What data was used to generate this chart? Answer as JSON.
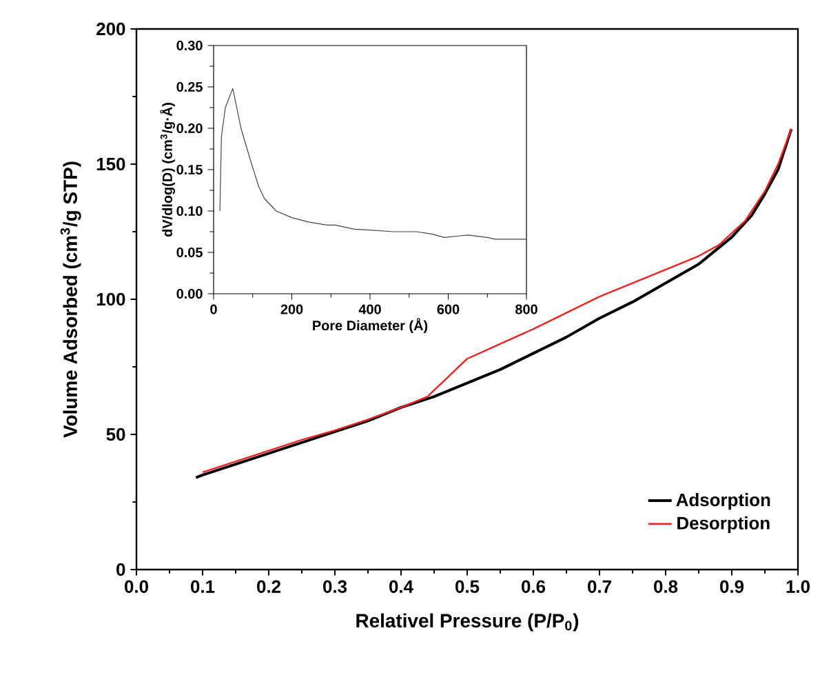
{
  "chart_data": [
    {
      "type": "line",
      "xlabel": "Relativel Pressure (P/P$_{0}$)",
      "ylabel": "Volume Adsorbed (cm$^{3}$/g STP)",
      "xlim": [
        0,
        1
      ],
      "ylim": [
        0,
        200
      ],
      "xticks": [
        {
          "value": 0,
          "label": "0.0"
        },
        0.1,
        0.2,
        0.3,
        0.4,
        0.5,
        0.6,
        0.7,
        0.8,
        0.9,
        {
          "value": 1,
          "label": "1.0"
        }
      ],
      "yticks": [
        0,
        50,
        100,
        150,
        200
      ],
      "legend": "bottom right",
      "series": [
        {
          "name": "Adsorption",
          "color": "#000000",
          "x": [
            0.09,
            0.1,
            0.15,
            0.2,
            0.25,
            0.3,
            0.35,
            0.4,
            0.45,
            0.5,
            0.55,
            0.6,
            0.65,
            0.7,
            0.75,
            0.8,
            0.85,
            0.9,
            0.93,
            0.95,
            0.97,
            0.99
          ],
          "values": [
            34,
            35,
            39,
            43,
            47,
            51,
            55,
            60,
            64,
            69,
            74,
            80,
            86,
            93,
            99,
            106,
            113,
            123,
            131,
            139,
            148,
            163
          ]
        },
        {
          "name": "Desorption",
          "color": "#ee2222",
          "x": [
            0.1,
            0.15,
            0.2,
            0.25,
            0.3,
            0.35,
            0.4,
            0.44,
            0.47,
            0.5,
            0.55,
            0.6,
            0.65,
            0.7,
            0.75,
            0.8,
            0.85,
            0.88,
            0.92,
            0.95,
            0.97,
            0.99
          ],
          "values": [
            36,
            40,
            44,
            48,
            51.5,
            55.5,
            60,
            64,
            71,
            78,
            83.5,
            89,
            95,
            101,
            106,
            111,
            116,
            120,
            129,
            140,
            150,
            163
          ]
        }
      ]
    },
    {
      "type": "line",
      "xlabel": "Pore Diameter (Å)",
      "ylabel": "dV/dlog(D) (cm$^{3}$/g·Å)",
      "xlim": [
        0,
        800
      ],
      "ylim": [
        0,
        0.3
      ],
      "xticks": [
        0,
        200,
        400,
        600,
        800
      ],
      "yticks": [
        {
          "value": 0,
          "label": "0.00"
        },
        0.05,
        {
          "value": 0.1,
          "label": "0.10"
        },
        0.15,
        {
          "value": 0.2,
          "label": "0.20"
        },
        0.25,
        {
          "value": 0.3,
          "label": "0.30"
        }
      ],
      "series": [
        {
          "color": "#444444",
          "x": [
            16,
            20,
            30,
            49,
            70,
            95,
            115,
            130,
            160,
            200,
            240,
            290,
            310,
            360,
            400,
            460,
            520,
            560,
            590,
            630,
            650,
            700,
            720,
            800
          ],
          "values": [
            0.1,
            0.19,
            0.225,
            0.248,
            0.2,
            0.16,
            0.13,
            0.115,
            0.1,
            0.092,
            0.087,
            0.083,
            0.083,
            0.078,
            0.077,
            0.075,
            0.075,
            0.072,
            0.068,
            0.07,
            0.071,
            0.068,
            0.066,
            0.066
          ]
        }
      ]
    }
  ]
}
